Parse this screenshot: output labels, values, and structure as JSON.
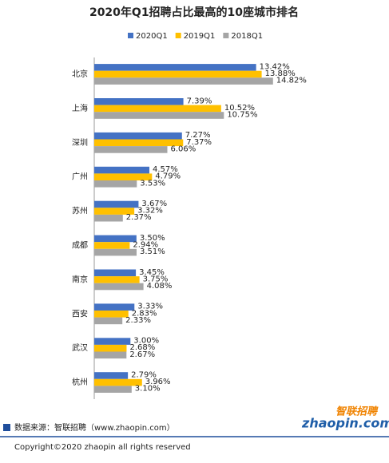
{
  "chart_data": {
    "type": "bar",
    "orientation": "horizontal",
    "title": "2020年Q1招聘占比最高的10座城市排名",
    "categories": [
      "北京",
      "上海",
      "深圳",
      "广州",
      "苏州",
      "成都",
      "南京",
      "西安",
      "武汉",
      "杭州"
    ],
    "series": [
      {
        "name": "2020Q1",
        "color": "#4472c4",
        "values": [
          13.42,
          7.39,
          7.27,
          4.57,
          3.67,
          3.5,
          3.45,
          3.33,
          3.0,
          2.79
        ],
        "value_labels": [
          "13.42%",
          "7.39%",
          "7.27%",
          "4.57%",
          "3.67%",
          "3.50%",
          "3.45%",
          "3.33%",
          "3.00%",
          "2.79%"
        ]
      },
      {
        "name": "2019Q1",
        "color": "#ffc000",
        "values": [
          13.88,
          10.52,
          7.37,
          4.79,
          3.32,
          2.94,
          3.75,
          2.83,
          2.68,
          3.96
        ],
        "value_labels": [
          "13.88%",
          "10.52%",
          "7.37%",
          "4.79%",
          "3.32%",
          "2.94%",
          "3.75%",
          "2.83%",
          "2.68%",
          "3.96%"
        ]
      },
      {
        "name": "2018Q1",
        "color": "#a5a5a5",
        "values": [
          14.82,
          10.75,
          6.06,
          3.53,
          2.37,
          3.51,
          4.08,
          2.33,
          2.67,
          3.1
        ],
        "value_labels": [
          "14.82%",
          "10.75%",
          "6.06%",
          "3.53%",
          "2.37%",
          "3.51%",
          "4.08%",
          "2.33%",
          "2.67%",
          "3.10%"
        ]
      }
    ],
    "legend": "top"
  },
  "footer": {
    "source": "数据来源：智联招聘（www.zhaopin.com）",
    "logo_cn": "智联招聘",
    "logo_en": "zhaopin.com",
    "copyright": "Copyright©2020 zhaopin all rights reserved"
  }
}
